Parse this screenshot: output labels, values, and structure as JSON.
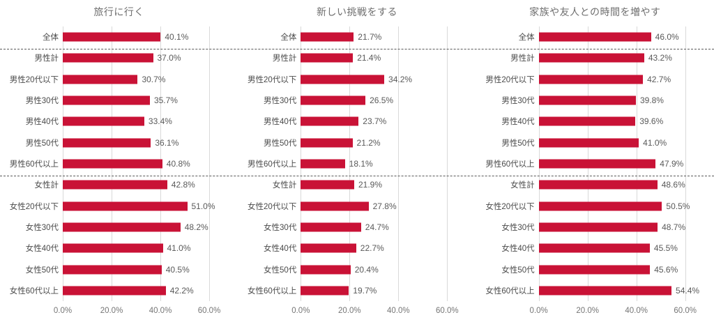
{
  "colors": {
    "background": "#ffffff",
    "bar": "#c91236",
    "title": "#6e6e6e",
    "category_label": "#4a4a4a",
    "value_label": "#595959",
    "axis_label": "#757575",
    "gridline": "#d9d9d9",
    "separator": "#595959"
  },
  "layout": {
    "grid": true,
    "separators_after_categories": [
      "全体",
      "男性60代以上"
    ],
    "value_labels": "outside-end"
  },
  "chart_data": [
    {
      "type": "bar",
      "orientation": "horizontal",
      "title": "旅行に行く",
      "categories": [
        "全体",
        "男性計",
        "男性20代以下",
        "男性30代",
        "男性40代",
        "男性50代",
        "男性60代以上",
        "女性計",
        "女性20代以下",
        "女性30代",
        "女性40代",
        "女性50代",
        "女性60代以上"
      ],
      "values": [
        40.1,
        37.0,
        30.7,
        35.7,
        33.4,
        36.1,
        40.8,
        42.8,
        51.0,
        48.2,
        41.0,
        40.5,
        42.2
      ],
      "xlim": [
        0,
        60
      ],
      "xtick_labels": [
        "0.0%",
        "20.0%",
        "40.0%",
        "60.0%"
      ],
      "value_suffix": "%",
      "bar_color": "#c91236"
    },
    {
      "type": "bar",
      "orientation": "horizontal",
      "title": "新しい挑戦をする",
      "categories": [
        "全体",
        "男性計",
        "男性20代以下",
        "男性30代",
        "男性40代",
        "男性50代",
        "男性60代以上",
        "女性計",
        "女性20代以下",
        "女性30代",
        "女性40代",
        "女性50代",
        "女性60代以上"
      ],
      "values": [
        21.7,
        21.4,
        34.2,
        26.5,
        23.7,
        21.2,
        18.1,
        21.9,
        27.8,
        24.7,
        22.7,
        20.4,
        19.7
      ],
      "xlim": [
        0,
        60
      ],
      "xtick_labels": [
        "0.0%",
        "20.0%",
        "40.0%",
        "60.0%"
      ],
      "value_suffix": "%",
      "bar_color": "#c91236"
    },
    {
      "type": "bar",
      "orientation": "horizontal",
      "title": "家族や友人との時間を増やす",
      "categories": [
        "全体",
        "男性計",
        "男性20代以下",
        "男性30代",
        "男性40代",
        "男性50代",
        "男性60代以上",
        "女性計",
        "女性20代以下",
        "女性30代",
        "女性40代",
        "女性50代",
        "女性60代以上"
      ],
      "values": [
        46.0,
        43.2,
        42.7,
        39.8,
        39.6,
        41.0,
        47.9,
        48.6,
        50.5,
        48.7,
        45.5,
        45.6,
        54.4
      ],
      "xlim": [
        0,
        60
      ],
      "xtick_labels": [
        "0.0%",
        "20.0%",
        "40.0%",
        "60.0%"
      ],
      "value_suffix": "%",
      "bar_color": "#c91236"
    }
  ]
}
